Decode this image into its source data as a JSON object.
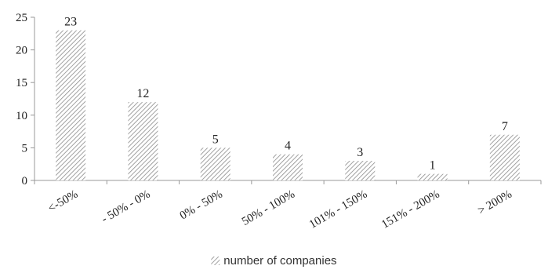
{
  "chart_data": {
    "type": "bar",
    "categories": [
      "<-50%",
      "- 50% - 0%",
      "0% - 50%",
      "50% - 100%",
      "101% - 150%",
      "151% - 200%",
      "> 200%"
    ],
    "series": [
      {
        "name": "number of companies",
        "values": [
          23,
          12,
          5,
          4,
          3,
          1,
          7
        ]
      }
    ],
    "ylim": [
      0,
      25
    ],
    "yticks": [
      0,
      5,
      10,
      15,
      20,
      25
    ],
    "grid": false,
    "legend": "bottom",
    "bar_pattern": "diagonal-hatch",
    "colors": {
      "bar_fill": "#ffffff",
      "bar_hatch": "#8a8a8a",
      "axis": "#999999",
      "text": "#222222"
    }
  }
}
